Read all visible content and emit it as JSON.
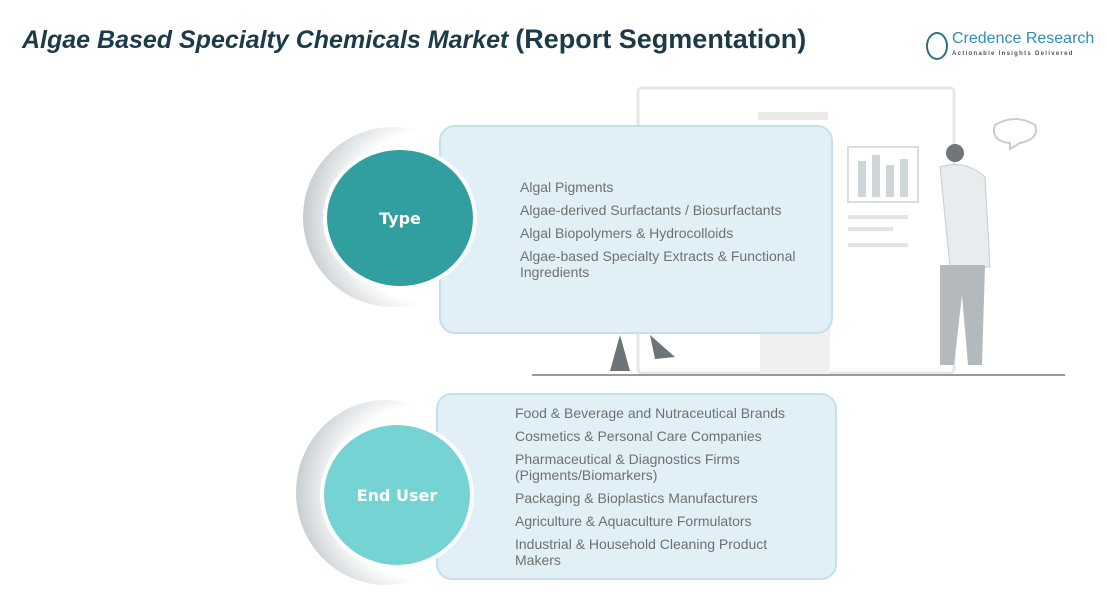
{
  "header": {
    "title_italic": "Algae Based Specialty Chemicals Market",
    "title_paren": "(Report Segmentation)"
  },
  "logo": {
    "name": "Credence Research",
    "tagline": "Actionable Insights Delivered"
  },
  "segments": [
    {
      "label": "Type",
      "color": "#319f9f",
      "items": [
        "Algal Pigments",
        "Algae-derived Surfactants / Biosurfactants",
        "Algal Biopolymers  & Hydrocolloids",
        "Algae-based Specialty Extracts & Functional Ingredients"
      ]
    },
    {
      "label": "End User",
      "color": "#76d3d3",
      "items": [
        "Food & Beverage and Nutraceutical Brands",
        "Cosmetics & Personal Care Companies",
        "Pharmaceutical & Diagnostics Firms (Pigments/Biomarkers)",
        "Packaging & Bioplastics Manufacturers",
        "Agriculture & Aquaculture Formulators",
        "Industrial & Household Cleaning Product Makers"
      ]
    }
  ]
}
